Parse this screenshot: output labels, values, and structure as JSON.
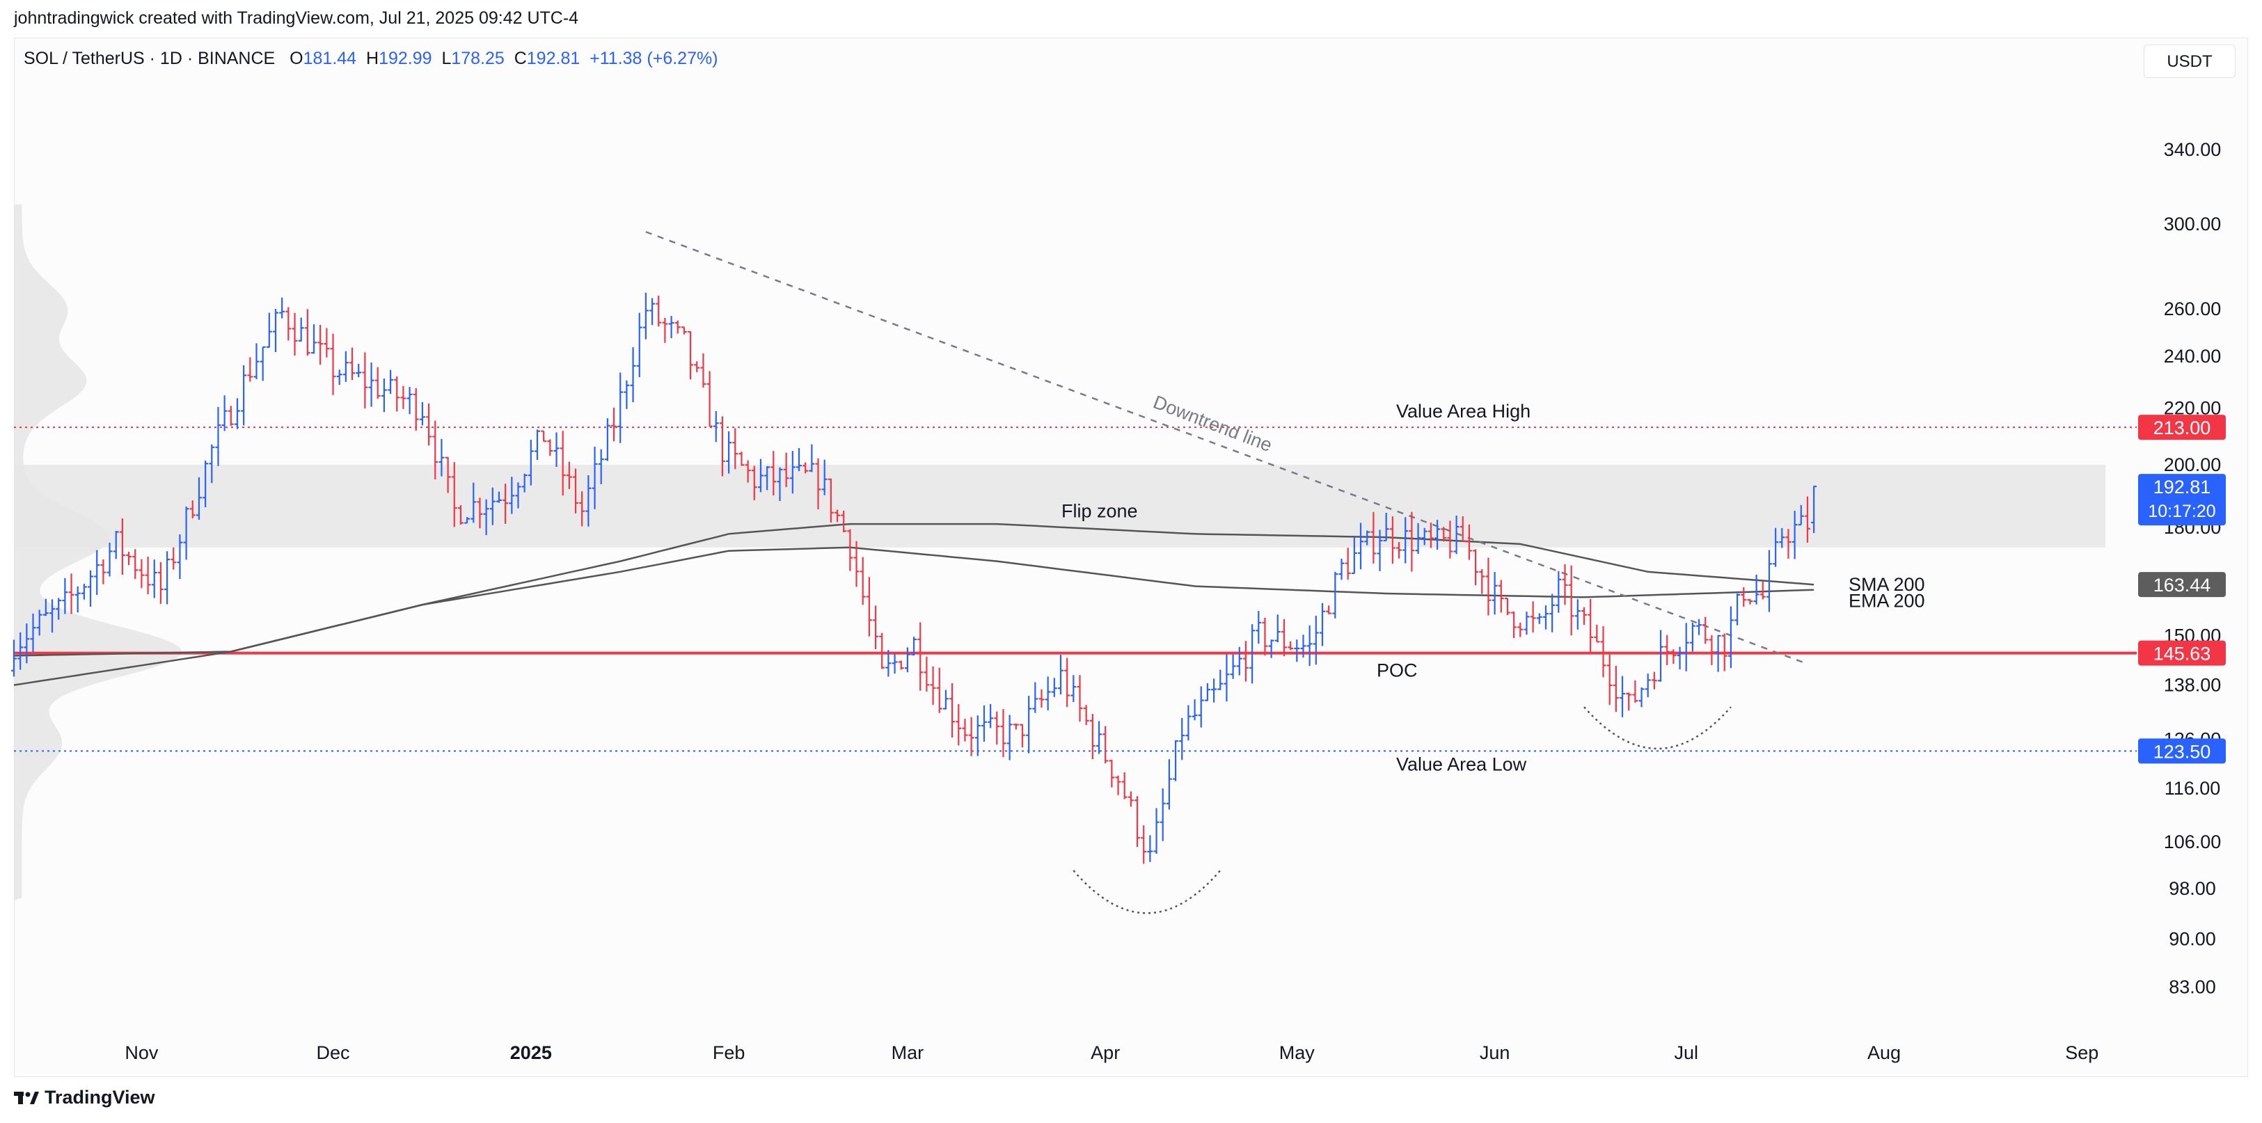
{
  "credit": "johntradingwick created with TradingView.com, Jul 21, 2025 09:42 UTC-4",
  "header": {
    "symbol": "SOL / TetherUS · 1D · BINANCE",
    "o_label": "O",
    "o_value": "181.44",
    "h_label": "H",
    "h_value": "192.99",
    "l_label": "L",
    "l_value": "178.25",
    "c_label": "C",
    "c_value": "192.81",
    "change": "+11.38 (+6.27%)"
  },
  "currency": "USDT",
  "footer": {
    "logo_text": "TradingView"
  },
  "colors": {
    "up": "#2962ff",
    "down": "#f23645",
    "poc_line": "#f23645",
    "vah_line": "#f23645",
    "val_line": "#2962ff",
    "ma_line": "#555555",
    "flip_zone": "#e6e6e6",
    "profile": "#e3e3e3"
  },
  "chart_data": {
    "type": "ohlc",
    "scale": "log",
    "ylim": [
      80,
      380
    ],
    "x_range": [
      "2024-10-12",
      "2025-09-05"
    ],
    "y_ticks": [
      "83.00",
      "90.00",
      "98.00",
      "106.00",
      "116.00",
      "126.00",
      "138.00",
      "150.00",
      "180.00",
      "200.00",
      "220.00",
      "240.00",
      "260.00",
      "300.00",
      "340.00"
    ],
    "y_tick_values": [
      83,
      90,
      98,
      106,
      116,
      126,
      138,
      150,
      180,
      200,
      220,
      240,
      260,
      300,
      340
    ],
    "x_ticks": [
      {
        "date": "2024-11-01",
        "label": "Nov",
        "bold": false
      },
      {
        "date": "2024-12-01",
        "label": "Dec",
        "bold": false
      },
      {
        "date": "2025-01-01",
        "label": "2025",
        "bold": true
      },
      {
        "date": "2025-02-01",
        "label": "Feb",
        "bold": false
      },
      {
        "date": "2025-03-01",
        "label": "Mar",
        "bold": false
      },
      {
        "date": "2025-04-01",
        "label": "Apr",
        "bold": false
      },
      {
        "date": "2025-05-01",
        "label": "May",
        "bold": false
      },
      {
        "date": "2025-06-01",
        "label": "Jun",
        "bold": false
      },
      {
        "date": "2025-07-01",
        "label": "Jul",
        "bold": false
      },
      {
        "date": "2025-08-01",
        "label": "Aug",
        "bold": false
      },
      {
        "date": "2025-09-01",
        "label": "Sep",
        "bold": false
      }
    ],
    "price_path": [
      [
        "2024-10-12",
        148
      ],
      [
        "2024-10-20",
        158
      ],
      [
        "2024-10-28",
        175
      ],
      [
        "2024-11-04",
        162
      ],
      [
        "2024-11-12",
        205
      ],
      [
        "2024-11-18",
        235
      ],
      [
        "2024-11-23",
        258
      ],
      [
        "2024-12-01",
        235
      ],
      [
        "2024-12-08",
        228
      ],
      [
        "2024-12-15",
        220
      ],
      [
        "2024-12-20",
        185
      ],
      [
        "2024-12-28",
        190
      ],
      [
        "2025-01-03",
        210
      ],
      [
        "2025-01-09",
        185
      ],
      [
        "2025-01-14",
        215
      ],
      [
        "2025-01-19",
        260
      ],
      [
        "2025-01-25",
        245
      ],
      [
        "2025-01-31",
        205
      ],
      [
        "2025-02-05",
        195
      ],
      [
        "2025-02-15",
        196
      ],
      [
        "2025-02-20",
        175
      ],
      [
        "2025-02-25",
        140
      ],
      [
        "2025-03-02",
        148
      ],
      [
        "2025-03-05",
        138
      ],
      [
        "2025-03-10",
        128
      ],
      [
        "2025-03-18",
        127
      ],
      [
        "2025-03-25",
        140
      ],
      [
        "2025-03-30",
        127
      ],
      [
        "2025-04-03",
        118
      ],
      [
        "2025-04-08",
        103
      ],
      [
        "2025-04-13",
        128
      ],
      [
        "2025-04-19",
        137
      ],
      [
        "2025-04-25",
        150
      ],
      [
        "2025-05-03",
        147
      ],
      [
        "2025-05-08",
        168
      ],
      [
        "2025-05-14",
        178
      ],
      [
        "2025-05-22",
        175
      ],
      [
        "2025-05-27",
        176
      ],
      [
        "2025-06-02",
        157
      ],
      [
        "2025-06-08",
        152
      ],
      [
        "2025-06-11",
        162
      ],
      [
        "2025-06-16",
        150
      ],
      [
        "2025-06-22",
        133
      ],
      [
        "2025-06-27",
        145
      ],
      [
        "2025-07-02",
        152
      ],
      [
        "2025-07-07",
        148
      ],
      [
        "2025-07-10",
        162
      ],
      [
        "2025-07-13",
        160
      ],
      [
        "2025-07-16",
        178
      ],
      [
        "2025-07-20",
        181
      ],
      [
        "2025-07-21",
        192.81
      ]
    ],
    "sma200": [
      [
        "2024-10-12",
        145
      ],
      [
        "2024-11-15",
        146
      ],
      [
        "2024-12-15",
        158
      ],
      [
        "2025-01-15",
        170
      ],
      [
        "2025-02-01",
        178
      ],
      [
        "2025-02-20",
        181
      ],
      [
        "2025-03-15",
        181
      ],
      [
        "2025-04-15",
        178
      ],
      [
        "2025-05-15",
        177
      ],
      [
        "2025-06-05",
        175
      ],
      [
        "2025-06-25",
        167
      ],
      [
        "2025-07-21",
        163.44
      ]
    ],
    "ema200": [
      [
        "2024-10-12",
        138
      ],
      [
        "2024-11-15",
        146
      ],
      [
        "2024-12-15",
        158
      ],
      [
        "2025-01-15",
        167
      ],
      [
        "2025-02-01",
        173
      ],
      [
        "2025-02-20",
        174
      ],
      [
        "2025-03-15",
        170
      ],
      [
        "2025-04-15",
        163
      ],
      [
        "2025-05-15",
        161
      ],
      [
        "2025-06-15",
        160
      ],
      [
        "2025-07-21",
        162
      ]
    ],
    "levels": [
      {
        "name": "Value Area High",
        "value": 213.0,
        "label": "213.00",
        "style": "dotted",
        "color": "#f23645"
      },
      {
        "name": "POC",
        "value": 145.63,
        "label": "145.63",
        "style": "solid",
        "color": "#f23645"
      },
      {
        "name": "Value Area Low",
        "value": 123.5,
        "label": "123.50",
        "style": "dotted",
        "color": "#2962ff"
      }
    ],
    "flip_zone": {
      "label": "Flip zone",
      "low": 174,
      "high": 200
    },
    "downtrend_line": {
      "label": "Downtrend line",
      "from": [
        "2025-01-19",
        296
      ],
      "to": [
        "2025-07-20",
        143
      ]
    },
    "last_price": {
      "value": 192.81,
      "label": "192.81",
      "countdown": "10:17:20"
    },
    "sma_badge": {
      "value": 163.44,
      "label": "163.44"
    },
    "ma_labels": {
      "sma": "SMA 200",
      "ema": "EMA 200"
    },
    "annotations": {
      "value_area_high": "Value Area High",
      "value_area_low": "Value Area Low",
      "poc": "POC",
      "flip_zone": "Flip zone",
      "downtrend": "Downtrend line"
    },
    "rounded_bottoms": [
      {
        "from": "2025-03-27",
        "to": "2025-04-19",
        "top_price": 101,
        "bottom_price": 94
      },
      {
        "from": "2025-06-15",
        "to": "2025-07-08",
        "top_price": 133,
        "bottom_price": 124
      }
    ],
    "volume_profile": {
      "price_range": [
        96,
        310
      ],
      "peaks": [
        {
          "price": 146,
          "width": 1.0
        },
        {
          "price": 177,
          "width": 0.55
        },
        {
          "price": 230,
          "width": 0.4
        },
        {
          "price": 260,
          "width": 0.28
        },
        {
          "price": 125,
          "width": 0.25
        }
      ]
    }
  }
}
